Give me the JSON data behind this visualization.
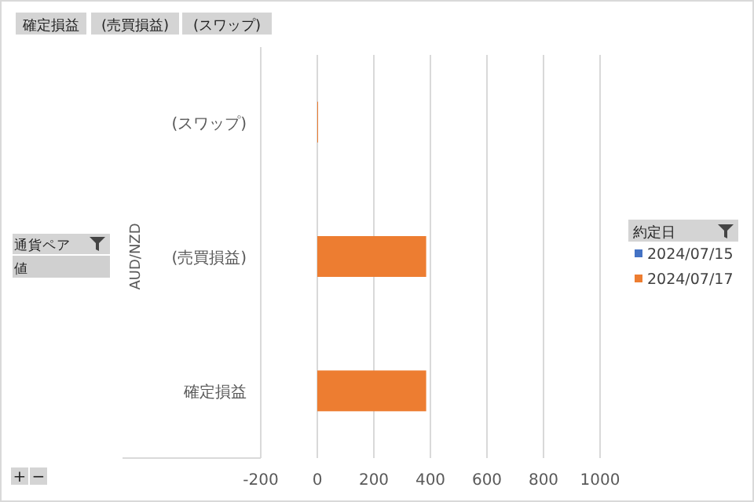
{
  "chart_data": {
    "type": "bar",
    "orientation": "horizontal",
    "categories": [
      "(スワップ)",
      "(売買損益)",
      "確定損益"
    ],
    "ylabel": "AUD/NZD",
    "legend_title": "約定日",
    "series": [
      {
        "name": "2024/07/15",
        "color": "#4472c4",
        "values": [
          null,
          null,
          null
        ]
      },
      {
        "name": "2024/07/17",
        "color": "#ed7d31",
        "values": [
          2,
          385,
          385
        ]
      }
    ],
    "xlim": [
      -200,
      1000
    ],
    "xticks": [
      -200,
      0,
      200,
      400,
      600,
      800,
      1000
    ],
    "grid": "x",
    "legend": "right",
    "annotations": [
      "確定損益",
      "(売買損益)",
      "(スワップ)",
      "通貨ペア",
      "値",
      "+",
      "−"
    ]
  }
}
